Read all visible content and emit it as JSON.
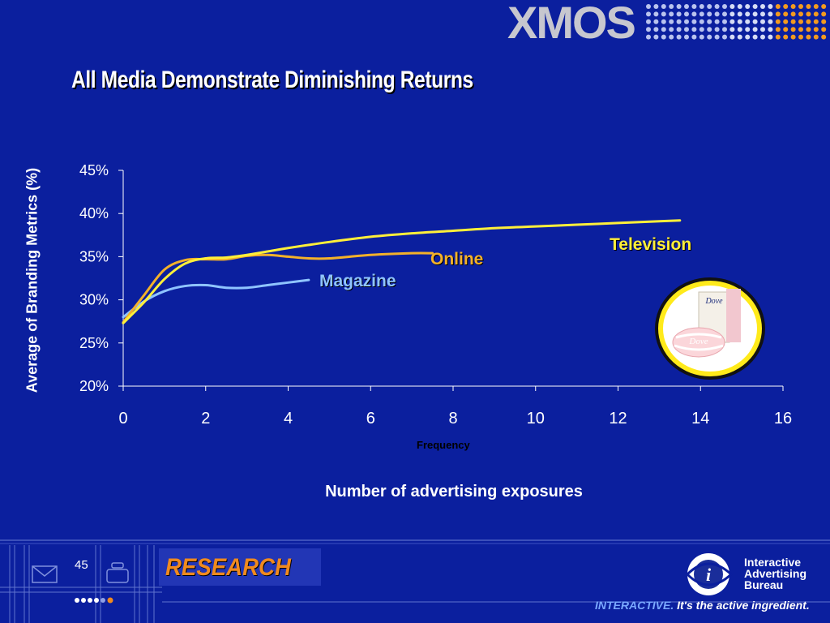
{
  "brand": {
    "logo_text": "XMOS"
  },
  "slide": {
    "title": "All Media Demonstrate Diminishing Returns",
    "page_number": "45",
    "footer_section": "RESEARCH",
    "iab_lines": [
      "Interactive",
      "Advertising",
      "Bureau"
    ],
    "tagline_accent": "INTERACTIVE.",
    "tagline_rest": " It's the active ingredient."
  },
  "colors": {
    "background": "#0b1f9e",
    "television": "#ffef3a",
    "online": "#f3b12a",
    "magazine": "#8fc4ff",
    "research": "#f08a1e"
  },
  "chart_data": {
    "type": "line",
    "title": "All Media Demonstrate Diminishing Returns",
    "xlabel": "Number of advertising exposures",
    "xlabel_small": "Frequency",
    "ylabel": "Average of Branding Metrics (%)",
    "xlim": [
      0,
      16
    ],
    "ylim": [
      20,
      45
    ],
    "x_ticks": [
      "0",
      "2",
      "4",
      "6",
      "8",
      "10",
      "12",
      "14",
      "16"
    ],
    "y_ticks": [
      "20%",
      "25%",
      "30%",
      "35%",
      "40%",
      "45%"
    ],
    "grid": false,
    "series": [
      {
        "name": "Television",
        "color": "#ffef3a",
        "x": [
          0,
          0.5,
          1,
          1.5,
          2,
          2.5,
          3,
          3.5,
          4,
          5,
          6,
          7,
          8,
          9,
          10,
          11,
          12,
          13,
          13.5
        ],
        "y": [
          27.3,
          29.7,
          32.4,
          34.2,
          34.8,
          34.9,
          35.2,
          35.6,
          36.0,
          36.7,
          37.3,
          37.7,
          38.0,
          38.3,
          38.5,
          38.7,
          38.9,
          39.1,
          39.2
        ]
      },
      {
        "name": "Online",
        "color": "#f3b12a",
        "x": [
          0,
          0.5,
          1,
          1.5,
          2,
          2.5,
          3,
          3.5,
          4,
          4.5,
          5,
          6,
          7,
          7.5
        ],
        "y": [
          27.4,
          30.5,
          33.5,
          34.6,
          34.7,
          34.7,
          35.1,
          35.2,
          35.0,
          34.8,
          34.8,
          35.2,
          35.4,
          35.4
        ]
      },
      {
        "name": "Magazine",
        "color": "#8fc4ff",
        "x": [
          0,
          0.5,
          1,
          1.5,
          2,
          2.5,
          3,
          3.5,
          4,
          4.5
        ],
        "y": [
          28.0,
          29.8,
          31.0,
          31.6,
          31.7,
          31.4,
          31.4,
          31.7,
          32.0,
          32.3
        ]
      }
    ]
  }
}
